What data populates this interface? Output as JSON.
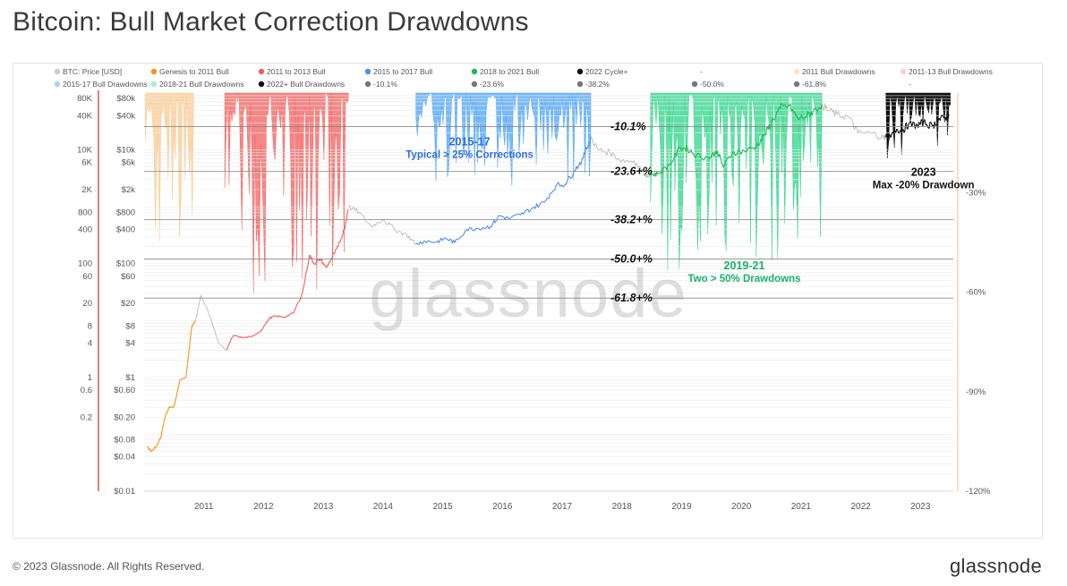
{
  "title": "Bitcoin: Bull Market Correction Drawdowns",
  "footer": {
    "copyright": "© 2023 Glassnode. All Rights Reserved.",
    "logo": "glassnode"
  },
  "watermark": "glassnode",
  "chart_data": {
    "type": "area",
    "x_ticks": [
      "2011",
      "2012",
      "2013",
      "2014",
      "2015",
      "2016",
      "2017",
      "2018",
      "2019",
      "2020",
      "2021",
      "2022",
      "2023"
    ],
    "y_left_outer_ticks": [
      "80K",
      "40K",
      "10K",
      "6K",
      "2K",
      "800",
      "400",
      "100",
      "60",
      "20",
      "8",
      "4",
      "1",
      "0.6",
      "0.2"
    ],
    "y_left_inner_ticks": [
      "$80k",
      "$40k",
      "$10k",
      "$6k",
      "$2k",
      "$800",
      "$400",
      "$100",
      "$60",
      "$20",
      "$8",
      "$4",
      "$1",
      "$0.60",
      "$0.20",
      "$0.08",
      "$0.04",
      "$0.01"
    ],
    "y_right_ticks": [
      "-30%",
      "-60%",
      "-90%",
      "-120%"
    ],
    "y_right_values": [
      -30,
      -60,
      -90,
      -120
    ],
    "legend": [
      {
        "label": "BTC: Price [USD]",
        "color": "#cccccc"
      },
      {
        "label": "Genesis to 2011 Bull",
        "color": "#f7931a"
      },
      {
        "label": "2011 to 2013 Bull",
        "color": "#f25f5c"
      },
      {
        "label": "2015 to 2017 Bull",
        "color": "#4f8ff0"
      },
      {
        "label": "2018 to 2021 Bull",
        "color": "#1db954"
      },
      {
        "label": "2022 Cycle+",
        "color": "#111111"
      },
      {
        "label": "-",
        "color": "#ffffff"
      },
      {
        "label": "2011 Bull Drawdowns",
        "color": "#fde0c2"
      },
      {
        "label": "2011-13 Bull Drawdowns",
        "color": "#fbd2d0"
      },
      {
        "label": "2015-17 Bull Drawdowns",
        "color": "#a9cff8"
      },
      {
        "label": "2018-21 Bull Drawdowns",
        "color": "#a8ecd1"
      },
      {
        "label": "2022+ Bull Drawdowns",
        "color": "#111111"
      },
      {
        "label": "-10.1%",
        "color": "#777777"
      },
      {
        "label": "-23.6%",
        "color": "#777777"
      },
      {
        "label": "-38.2%",
        "color": "#777777"
      },
      {
        "label": "-50.0%",
        "color": "#777777"
      },
      {
        "label": "-61.8%",
        "color": "#777777"
      },
      {
        "label": "-",
        "color": "#ffffff"
      }
    ],
    "fib_levels": [
      {
        "value": -10.1,
        "label": "-10.1%"
      },
      {
        "value": -23.6,
        "label": "-23.6+%"
      },
      {
        "value": -38.2,
        "label": "-38.2+%"
      },
      {
        "value": -50.0,
        "label": "-50.0+%"
      },
      {
        "value": -61.8,
        "label": "-61.8+%"
      }
    ],
    "drawdown_periods": [
      {
        "name": "2011 Bull Drawdowns",
        "start": 2010.52,
        "end": 2011.33,
        "color": "#f9c98f",
        "max_dd": -52
      },
      {
        "name": "2011-13 Bull Drawdowns",
        "start": 2011.85,
        "end": 2013.92,
        "color": "#f25f5c",
        "max_dd": -62
      },
      {
        "name": "2015-17 Bull Drawdowns",
        "start": 2015.05,
        "end": 2017.98,
        "color": "#4ca3f5",
        "max_dd": -28
      },
      {
        "name": "2018-21 Bull Drawdowns",
        "start": 2018.98,
        "end": 2021.85,
        "color": "#2fd48a",
        "max_dd": -55
      },
      {
        "name": "2022+ Bull Drawdowns",
        "start": 2022.92,
        "end": 2024.0,
        "color": "#111111",
        "max_dd": -20
      }
    ],
    "cycle_price_series": [
      {
        "name": "Genesis to 2011 Bull",
        "color": "#f7931a",
        "points": [
          [
            2010.55,
            0.06
          ],
          [
            2010.62,
            0.05
          ],
          [
            2010.7,
            0.06
          ],
          [
            2010.78,
            0.09
          ],
          [
            2010.85,
            0.2
          ],
          [
            2010.92,
            0.3
          ],
          [
            2011.0,
            0.3
          ],
          [
            2011.1,
            0.9
          ],
          [
            2011.2,
            1.0
          ],
          [
            2011.3,
            8.0
          ],
          [
            2011.36,
            10.0
          ]
        ]
      },
      {
        "name": "2011 to 2013 Bull",
        "color": "#f25f5c",
        "points": [
          [
            2011.88,
            3.0
          ],
          [
            2011.95,
            4.5
          ],
          [
            2012.0,
            5.5
          ],
          [
            2012.15,
            5.0
          ],
          [
            2012.3,
            5.2
          ],
          [
            2012.45,
            6.5
          ],
          [
            2012.6,
            11.0
          ],
          [
            2012.7,
            12.0
          ],
          [
            2012.85,
            11.5
          ],
          [
            2013.0,
            13.5
          ],
          [
            2013.15,
            30.0
          ],
          [
            2013.27,
            140.0
          ],
          [
            2013.35,
            100.0
          ],
          [
            2013.45,
            120.0
          ],
          [
            2013.55,
            85.0
          ],
          [
            2013.65,
            130.0
          ],
          [
            2013.75,
            200.0
          ],
          [
            2013.85,
            400.0
          ],
          [
            2013.92,
            900.0
          ]
        ]
      },
      {
        "name": "2015 to 2017 Bull",
        "color": "#4f8ff0",
        "points": [
          [
            2015.05,
            220.0
          ],
          [
            2015.2,
            250.0
          ],
          [
            2015.4,
            240.0
          ],
          [
            2015.55,
            280.0
          ],
          [
            2015.7,
            235.0
          ],
          [
            2015.9,
            400.0
          ],
          [
            2016.1,
            420.0
          ],
          [
            2016.3,
            450.0
          ],
          [
            2016.45,
            700.0
          ],
          [
            2016.6,
            620.0
          ],
          [
            2016.8,
            720.0
          ],
          [
            2017.0,
            950.0
          ],
          [
            2017.2,
            1200.0
          ],
          [
            2017.4,
            2400.0
          ],
          [
            2017.55,
            2500.0
          ],
          [
            2017.7,
            4300.0
          ],
          [
            2017.85,
            7000.0
          ],
          [
            2017.98,
            17000.0
          ]
        ]
      },
      {
        "name": "2018 to 2021 Bull",
        "color": "#1db954",
        "points": [
          [
            2018.98,
            3700.0
          ],
          [
            2019.1,
            3800.0
          ],
          [
            2019.3,
            5500.0
          ],
          [
            2019.48,
            11000.0
          ],
          [
            2019.6,
            10500.0
          ],
          [
            2019.75,
            8000.0
          ],
          [
            2019.95,
            7200.0
          ],
          [
            2020.1,
            9500.0
          ],
          [
            2020.2,
            5000.0
          ],
          [
            2020.35,
            9000.0
          ],
          [
            2020.55,
            9500.0
          ],
          [
            2020.75,
            11500.0
          ],
          [
            2020.9,
            19000.0
          ],
          [
            2021.0,
            30000.0
          ],
          [
            2021.15,
            55000.0
          ],
          [
            2021.3,
            60000.0
          ],
          [
            2021.45,
            35000.0
          ],
          [
            2021.6,
            40000.0
          ],
          [
            2021.7,
            47000.0
          ],
          [
            2021.85,
            63000.0
          ]
        ]
      },
      {
        "name": "2022 Cycle+",
        "color": "#111111",
        "points": [
          [
            2022.92,
            16800.0
          ],
          [
            2023.0,
            16600.0
          ],
          [
            2023.1,
            23000.0
          ],
          [
            2023.2,
            22000.0
          ],
          [
            2023.3,
            28000.0
          ],
          [
            2023.45,
            27000.0
          ],
          [
            2023.55,
            30500.0
          ],
          [
            2023.7,
            26000.0
          ],
          [
            2023.8,
            34000.0
          ],
          [
            2023.92,
            37000.0
          ],
          [
            2023.98,
            42000.0
          ]
        ]
      }
    ],
    "price_series": {
      "name": "BTC: Price [USD]",
      "color": "#bbbbbb",
      "points": [
        [
          2011.36,
          10.0
        ],
        [
          2011.45,
          28.0
        ],
        [
          2011.6,
          12.0
        ],
        [
          2011.75,
          4.0
        ],
        [
          2011.88,
          3.0
        ],
        [
          2013.92,
          1000.0
        ],
        [
          2014.1,
          800.0
        ],
        [
          2014.3,
          450.0
        ],
        [
          2014.5,
          600.0
        ],
        [
          2014.7,
          400.0
        ],
        [
          2014.9,
          320.0
        ],
        [
          2015.05,
          220.0
        ],
        [
          2017.98,
          17000.0
        ],
        [
          2018.1,
          10000.0
        ],
        [
          2018.3,
          9000.0
        ],
        [
          2018.5,
          6500.0
        ],
        [
          2018.7,
          6500.0
        ],
        [
          2018.9,
          3600.0
        ],
        [
          2018.98,
          3700.0
        ],
        [
          2021.85,
          63000.0
        ],
        [
          2021.95,
          50000.0
        ],
        [
          2022.1,
          42000.0
        ],
        [
          2022.3,
          38000.0
        ],
        [
          2022.45,
          20000.0
        ],
        [
          2022.7,
          19500.0
        ],
        [
          2022.88,
          16500.0
        ],
        [
          2022.92,
          16800.0
        ]
      ]
    },
    "annotations": [
      {
        "title": "2015-17",
        "text": "Typical > 25% Corrections",
        "color": "#2b6ee6",
        "x": 2015.95,
        "y": 12000
      },
      {
        "title": "2019-21",
        "text": "Two > 50% Drawdowns",
        "color": "#17b26a",
        "x": 2020.55,
        "y": 80
      },
      {
        "title": "2023",
        "text": "Max -20% Drawdown",
        "color": "#111111",
        "x": 2023.55,
        "y": 3500
      }
    ],
    "ylim_left": [
      0.01,
      100000
    ],
    "ylim_right": [
      -120,
      0
    ],
    "xlim": [
      2010.5,
      2024.05
    ],
    "scale": "log",
    "grid": true
  }
}
